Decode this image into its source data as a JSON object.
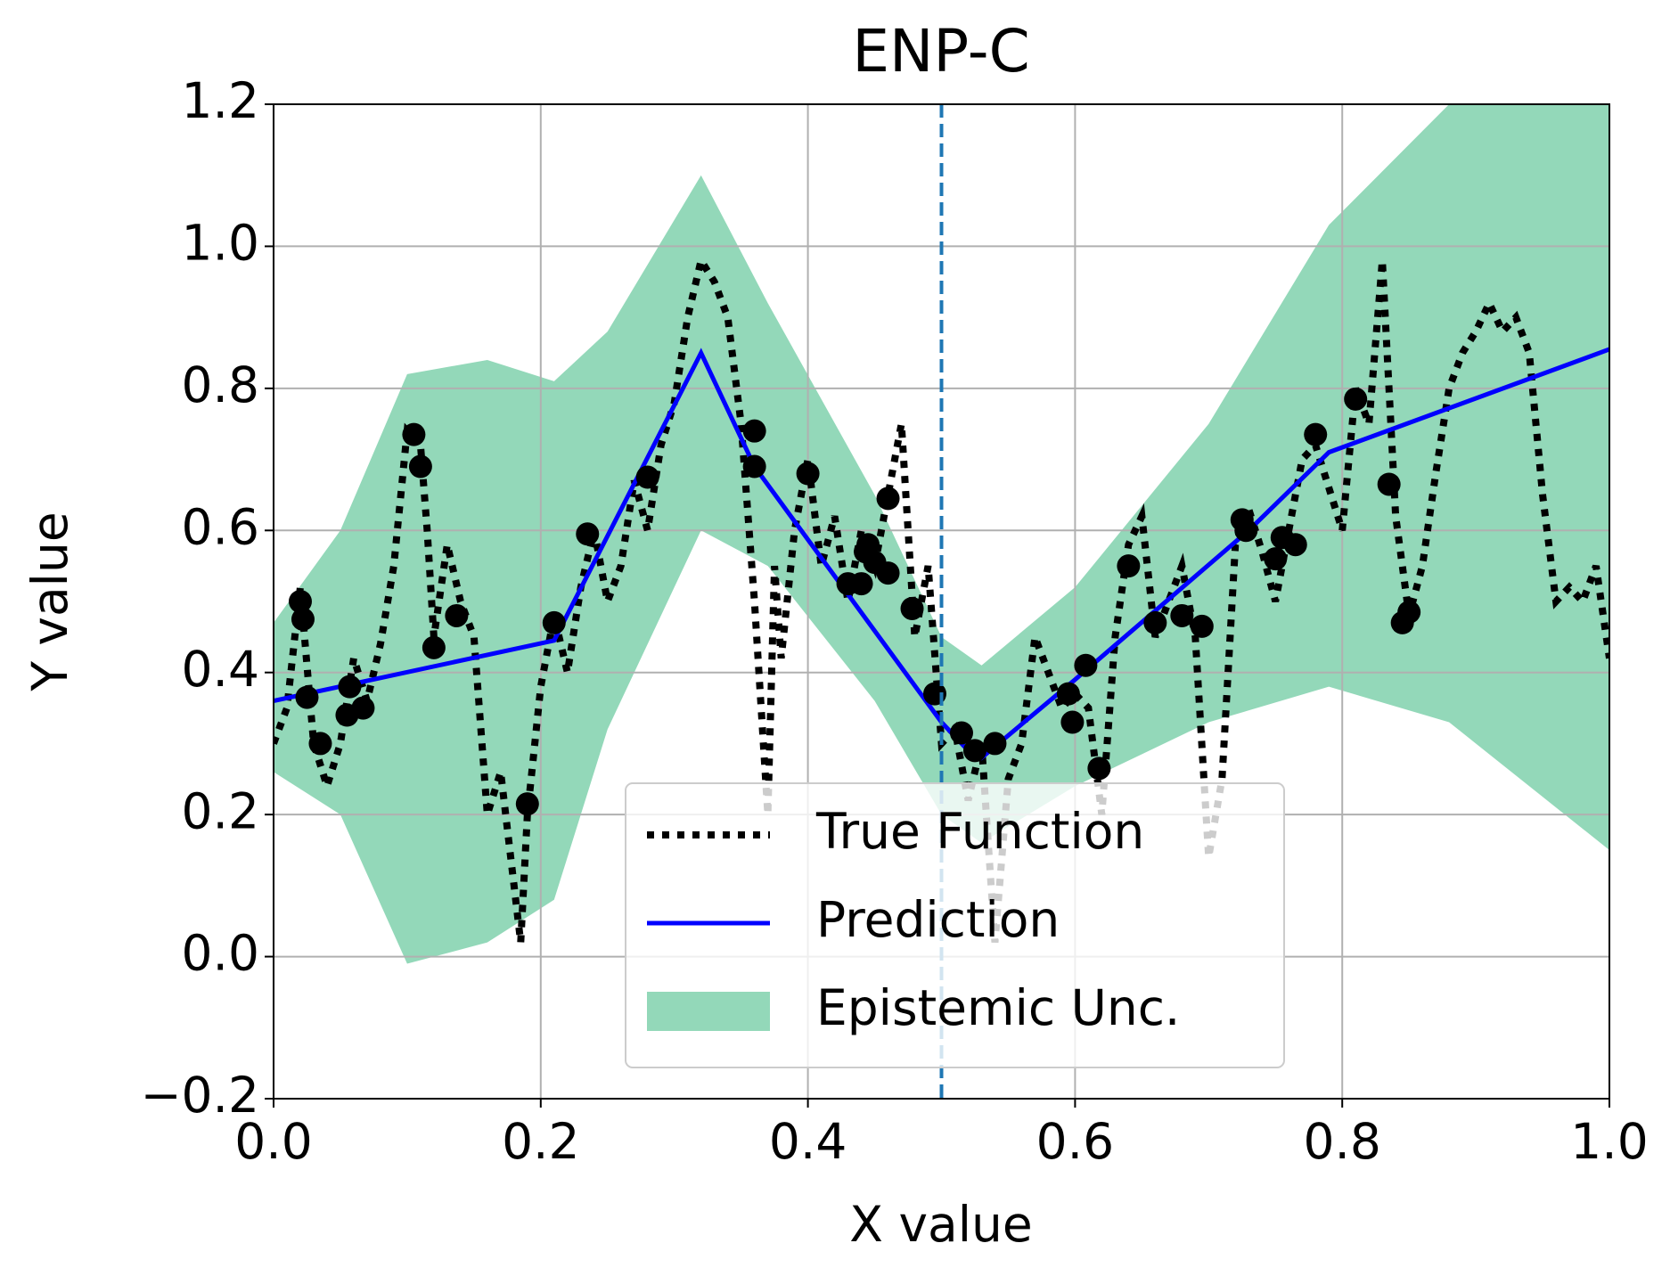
{
  "chart_data": {
    "type": "line",
    "title": "ENP-C",
    "x_label": "X value",
    "y_label": "Y value",
    "xlim": [
      0,
      1
    ],
    "ylim": [
      -0.2,
      1.2
    ],
    "xticks": [
      {
        "value": 0,
        "label": "0.0"
      },
      {
        "value": 0.2,
        "label": "0.2"
      },
      {
        "value": 0.4,
        "label": "0.4"
      },
      {
        "value": 0.6,
        "label": "0.6"
      },
      {
        "value": 0.8,
        "label": "0.8"
      },
      {
        "value": 1,
        "label": "1.0"
      }
    ],
    "yticks": [
      {
        "value": -0.2,
        "label": "−0.2"
      },
      {
        "value": 0,
        "label": "0.0"
      },
      {
        "value": 0.2,
        "label": "0.2"
      },
      {
        "value": 0.4,
        "label": "0.4"
      },
      {
        "value": 0.6,
        "label": "0.6"
      },
      {
        "value": 0.8,
        "label": "0.8"
      },
      {
        "value": 1,
        "label": "1.0"
      },
      {
        "value": 1.2,
        "label": "1.2"
      }
    ],
    "grid": true,
    "legend": "lower center",
    "vline": {
      "x": 0.5,
      "color": "#1f77b4"
    },
    "series": [
      {
        "name": "True Function",
        "color": "#000000",
        "style": "dotted",
        "x": [
          0,
          0.01,
          0.02,
          0.03,
          0.04,
          0.05,
          0.06,
          0.07,
          0.08,
          0.09,
          0.1,
          0.11,
          0.115,
          0.12,
          0.13,
          0.14,
          0.15,
          0.16,
          0.17,
          0.18,
          0.185,
          0.19,
          0.2,
          0.21,
          0.22,
          0.23,
          0.24,
          0.25,
          0.26,
          0.27,
          0.28,
          0.29,
          0.3,
          0.31,
          0.32,
          0.33,
          0.34,
          0.35,
          0.36,
          0.37,
          0.375,
          0.38,
          0.39,
          0.4,
          0.41,
          0.42,
          0.43,
          0.44,
          0.45,
          0.46,
          0.47,
          0.48,
          0.49,
          0.5,
          0.51,
          0.52,
          0.53,
          0.54,
          0.55,
          0.56,
          0.57,
          0.58,
          0.59,
          0.6,
          0.61,
          0.62,
          0.63,
          0.64,
          0.65,
          0.66,
          0.67,
          0.68,
          0.69,
          0.7,
          0.71,
          0.72,
          0.73,
          0.74,
          0.75,
          0.76,
          0.77,
          0.78,
          0.79,
          0.8,
          0.81,
          0.82,
          0.83,
          0.84,
          0.85,
          0.86,
          0.87,
          0.88,
          0.89,
          0.9,
          0.91,
          0.92,
          0.93,
          0.94,
          0.95,
          0.96,
          0.97,
          0.98,
          0.99,
          1
        ],
        "values": [
          0.3,
          0.35,
          0.52,
          0.3,
          0.24,
          0.3,
          0.42,
          0.36,
          0.44,
          0.55,
          0.74,
          0.72,
          0.6,
          0.45,
          0.58,
          0.5,
          0.45,
          0.2,
          0.26,
          0.1,
          0.02,
          0.2,
          0.38,
          0.48,
          0.4,
          0.52,
          0.6,
          0.5,
          0.55,
          0.67,
          0.6,
          0.72,
          0.78,
          0.9,
          0.98,
          0.95,
          0.9,
          0.75,
          0.5,
          0.2,
          0.55,
          0.42,
          0.6,
          0.7,
          0.55,
          0.62,
          0.5,
          0.6,
          0.55,
          0.65,
          0.75,
          0.45,
          0.55,
          0.3,
          0.32,
          0.22,
          0.3,
          0.02,
          0.25,
          0.3,
          0.45,
          0.4,
          0.35,
          0.37,
          0.35,
          0.2,
          0.45,
          0.58,
          0.62,
          0.45,
          0.5,
          0.55,
          0.45,
          0.14,
          0.25,
          0.58,
          0.63,
          0.57,
          0.5,
          0.6,
          0.7,
          0.72,
          0.66,
          0.6,
          0.8,
          0.75,
          0.98,
          0.62,
          0.48,
          0.55,
          0.68,
          0.8,
          0.85,
          0.88,
          0.92,
          0.88,
          0.9,
          0.85,
          0.65,
          0.5,
          0.52,
          0.5,
          0.55,
          0.42
        ]
      },
      {
        "name": "Prediction",
        "color": "#0000ff",
        "style": "solid",
        "x": [
          0,
          0.21,
          0.32,
          0.36,
          0.5,
          0.52,
          0.53,
          0.6,
          0.73,
          0.79,
          1
        ],
        "values": [
          0.36,
          0.445,
          0.85,
          0.69,
          0.33,
          0.29,
          0.28,
          0.39,
          0.6,
          0.71,
          0.855
        ]
      },
      {
        "name": "Epistemic Unc.",
        "color": "#93d8b9",
        "style": "band",
        "x": [
          0,
          0.05,
          0.1,
          0.16,
          0.21,
          0.25,
          0.32,
          0.37,
          0.45,
          0.5,
          0.53,
          0.6,
          0.7,
          0.79,
          0.88,
          1
        ],
        "upper": [
          0.47,
          0.6,
          0.82,
          0.84,
          0.81,
          0.88,
          1.1,
          0.92,
          0.65,
          0.45,
          0.41,
          0.52,
          0.75,
          1.03,
          1.2,
          1.35
        ],
        "lower": [
          0.26,
          0.2,
          -0.01,
          0.02,
          0.08,
          0.32,
          0.6,
          0.55,
          0.36,
          0.2,
          0.16,
          0.24,
          0.33,
          0.38,
          0.33,
          0.15
        ]
      }
    ],
    "points": {
      "color": "#000000",
      "x": [
        0.02,
        0.022,
        0.025,
        0.035,
        0.055,
        0.057,
        0.067,
        0.105,
        0.11,
        0.12,
        0.137,
        0.19,
        0.21,
        0.235,
        0.28,
        0.36,
        0.36,
        0.4,
        0.43,
        0.44,
        0.443,
        0.445,
        0.45,
        0.46,
        0.46,
        0.478,
        0.495,
        0.515,
        0.525,
        0.54,
        0.595,
        0.598,
        0.608,
        0.618,
        0.64,
        0.66,
        0.68,
        0.695,
        0.725,
        0.728,
        0.75,
        0.755,
        0.765,
        0.78,
        0.81,
        0.835,
        0.845,
        0.85
      ],
      "values": [
        0.5,
        0.475,
        0.365,
        0.3,
        0.34,
        0.38,
        0.35,
        0.735,
        0.69,
        0.435,
        0.48,
        0.215,
        0.47,
        0.595,
        0.675,
        0.74,
        0.69,
        0.68,
        0.525,
        0.525,
        0.57,
        0.58,
        0.555,
        0.645,
        0.54,
        0.49,
        0.37,
        0.315,
        0.29,
        0.3,
        0.37,
        0.33,
        0.41,
        0.265,
        0.55,
        0.47,
        0.48,
        0.465,
        0.615,
        0.6,
        0.56,
        0.59,
        0.58,
        0.735,
        0.785,
        0.665,
        0.47,
        0.485
      ]
    }
  }
}
